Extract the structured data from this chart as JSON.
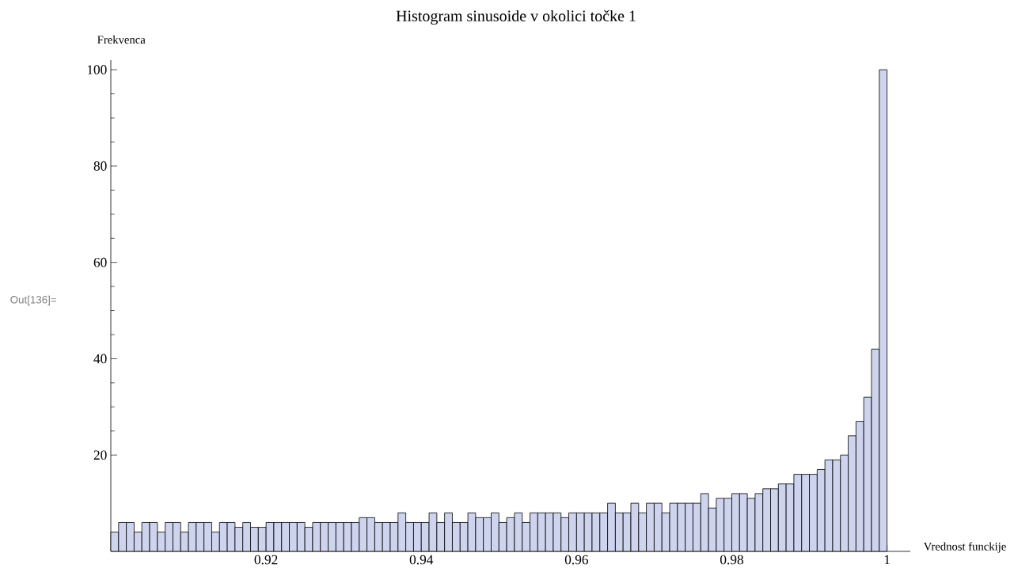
{
  "chart_data": {
    "type": "histogram",
    "title": "Histogram sinusoide v okolici točke 1",
    "xlabel": "Vrednost funckije",
    "ylabel": "Frekvenca",
    "annotations": [
      "Out[136]="
    ],
    "bins": [
      0.9,
      0.901,
      0.902,
      0.903,
      0.904,
      0.905,
      0.906,
      0.907,
      0.908,
      0.909,
      0.91,
      0.911,
      0.912,
      0.913,
      0.914,
      0.915,
      0.916,
      0.917,
      0.918,
      0.919,
      0.92,
      0.921,
      0.922,
      0.923,
      0.924,
      0.925,
      0.926,
      0.927,
      0.928,
      0.929,
      0.93,
      0.931,
      0.932,
      0.933,
      0.934,
      0.935,
      0.936,
      0.937,
      0.938,
      0.939,
      0.94,
      0.941,
      0.942,
      0.943,
      0.944,
      0.945,
      0.946,
      0.947,
      0.948,
      0.949,
      0.95,
      0.951,
      0.952,
      0.953,
      0.954,
      0.955,
      0.956,
      0.957,
      0.958,
      0.959,
      0.96,
      0.961,
      0.962,
      0.963,
      0.964,
      0.965,
      0.966,
      0.967,
      0.968,
      0.969,
      0.97,
      0.971,
      0.972,
      0.973,
      0.974,
      0.975,
      0.976,
      0.977,
      0.978,
      0.979,
      0.98,
      0.981,
      0.982,
      0.983,
      0.984,
      0.985,
      0.986,
      0.987,
      0.988,
      0.989,
      0.99,
      0.991,
      0.992,
      0.993,
      0.994,
      0.995,
      0.996,
      0.997,
      0.998,
      0.999,
      1.0
    ],
    "values": [
      4,
      6,
      6,
      4,
      6,
      6,
      4,
      6,
      6,
      4,
      6,
      6,
      6,
      4,
      6,
      6,
      5,
      6,
      5,
      5,
      6,
      6,
      6,
      6,
      6,
      5,
      6,
      6,
      6,
      6,
      6,
      6,
      7,
      7,
      6,
      6,
      6,
      8,
      6,
      6,
      6,
      8,
      6,
      8,
      6,
      6,
      8,
      7,
      7,
      8,
      6,
      7,
      8,
      6,
      8,
      8,
      8,
      8,
      7,
      8,
      8,
      8,
      8,
      8,
      10,
      8,
      8,
      10,
      8,
      10,
      10,
      8,
      10,
      10,
      10,
      10,
      12,
      9,
      11,
      11,
      12,
      12,
      11,
      12,
      13,
      13,
      14,
      14,
      16,
      16,
      16,
      17,
      19,
      19,
      20,
      24,
      27,
      32,
      42,
      100
    ],
    "color": "#cfd4ee",
    "xlim": [
      0.9,
      1.003
    ],
    "ylim": [
      0,
      102
    ],
    "xticks": [
      0.92,
      0.94,
      0.96,
      0.98,
      {
        "value": 1.0,
        "label": "1"
      }
    ],
    "yticks": [
      20,
      40,
      60,
      80,
      100
    ]
  }
}
